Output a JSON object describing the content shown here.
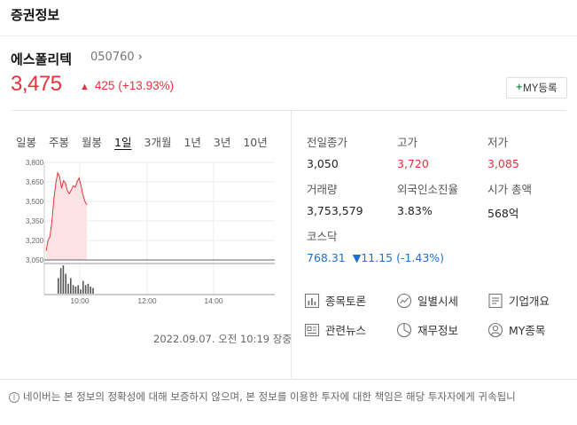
{
  "section_title": "증권정보",
  "stock": {
    "name": "에스폴리텍",
    "code": "050760",
    "price": "3,475",
    "change_arrow": "▲",
    "change": "425",
    "change_pct": "(+13.93%)"
  },
  "my_button_label": "MY등록",
  "tabs": [
    {
      "label": "일봉",
      "active": false
    },
    {
      "label": "주봉",
      "active": false
    },
    {
      "label": "월봉",
      "active": false
    },
    {
      "label": "1일",
      "active": true
    },
    {
      "label": "3개월",
      "active": false
    },
    {
      "label": "1년",
      "active": false
    },
    {
      "label": "3년",
      "active": false
    },
    {
      "label": "10년",
      "active": false
    }
  ],
  "chart_data": {
    "type": "area",
    "y_ticks": [
      "3,800",
      "3,650",
      "3,500",
      "3,350",
      "3,200",
      "3,050"
    ],
    "x_ticks": [
      "10:00",
      "12:00",
      "14:00"
    ],
    "ylim": [
      3050,
      3800
    ],
    "reference_line": 3050,
    "price_series": [
      3120,
      3200,
      3230,
      3350,
      3520,
      3640,
      3720,
      3690,
      3600,
      3660,
      3640,
      3580,
      3560,
      3590,
      3620,
      3610,
      3650,
      3680,
      3620,
      3550,
      3500,
      3475
    ],
    "volume_series": [
      0.55,
      0.9,
      1.0,
      0.7,
      0.35,
      0.55,
      0.3,
      0.25,
      0.3,
      0.15,
      0.45,
      0.3,
      0.35,
      0.25,
      0.2
    ]
  },
  "timestamp": "2022.09.07. 오전 10:19 장중",
  "stats": {
    "prev_close": {
      "label": "전일종가",
      "value": "3,050"
    },
    "high": {
      "label": "고가",
      "value": "3,720"
    },
    "low": {
      "label": "저가",
      "value": "3,085"
    },
    "volume": {
      "label": "거래량",
      "value": "3,753,579"
    },
    "foreign_rate": {
      "label": "외국인소진율",
      "value": "3.83%"
    },
    "market_cap": {
      "label": "시가 총액",
      "value": "568억"
    },
    "index_name": "코스닥",
    "index_value": "768.31",
    "index_change": "▼11.15 (-1.43%)"
  },
  "menu": {
    "forum": "종목토론",
    "daily": "일별시세",
    "company": "기업개요",
    "news": "관련뉴스",
    "finance": "재무정보",
    "my_stocks": "MY종목"
  },
  "notice": "네이버는 본 정보의 정확성에 대해 보증하지 않으며, 본 정보를 이용한 투자에 대한 책임은 해당 투자자에게 귀속됩니"
}
